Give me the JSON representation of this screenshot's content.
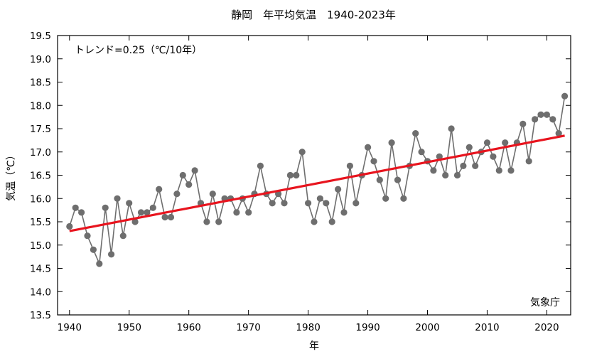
{
  "chart_data": {
    "type": "line",
    "title": "静岡　年平均気温　1940-2023年",
    "xlabel": "年",
    "ylabel": "気温（℃）",
    "trend_label": "トレンド=0.25（℃/10年）",
    "source": "気象庁",
    "xlim": [
      1938,
      2024
    ],
    "ylim": [
      13.5,
      19.5
    ],
    "xticks": [
      1940,
      1950,
      1960,
      1970,
      1980,
      1990,
      2000,
      2010,
      2020
    ],
    "yticks": [
      "13.5",
      "14.0",
      "14.5",
      "15.0",
      "15.5",
      "16.0",
      "16.5",
      "17.0",
      "17.5",
      "18.0",
      "18.5",
      "19.0",
      "19.5"
    ],
    "grid": false,
    "series": [
      {
        "x": [
          1940,
          1941,
          1942,
          1943,
          1944,
          1945,
          1946,
          1947,
          1948,
          1949,
          1950,
          1951,
          1952,
          1953,
          1954,
          1955,
          1956,
          1957,
          1958,
          1959,
          1960,
          1961,
          1962,
          1963,
          1964,
          1965,
          1966,
          1967,
          1968,
          1969,
          1970,
          1971,
          1972,
          1973,
          1974,
          1975,
          1976,
          1977,
          1978,
          1979,
          1980,
          1981,
          1982,
          1983,
          1984,
          1985,
          1986,
          1987,
          1988,
          1989,
          1990,
          1991,
          1992,
          1993,
          1994,
          1995,
          1996,
          1997,
          1998,
          1999,
          2000,
          2001,
          2002,
          2003,
          2004,
          2005,
          2006,
          2007,
          2008,
          2009,
          2010,
          2011,
          2012,
          2013,
          2014,
          2015,
          2016,
          2017,
          2018,
          2019,
          2020,
          2021,
          2022,
          2023
        ],
        "values": [
          15.4,
          15.8,
          15.7,
          15.2,
          14.9,
          14.6,
          15.8,
          14.8,
          16.0,
          15.2,
          15.9,
          15.5,
          15.7,
          15.7,
          15.8,
          16.2,
          15.6,
          15.6,
          16.1,
          16.5,
          16.3,
          16.6,
          15.9,
          15.5,
          16.1,
          15.5,
          16.0,
          16.0,
          15.7,
          16.0,
          15.7,
          16.1,
          16.7,
          16.1,
          15.9,
          16.1,
          15.9,
          16.5,
          16.5,
          17.0,
          15.9,
          15.5,
          16.0,
          15.9,
          15.5,
          16.2,
          15.7,
          16.7,
          15.9,
          16.5,
          17.1,
          16.8,
          16.4,
          16.0,
          17.2,
          16.4,
          16.0,
          16.7,
          17.4,
          17.0,
          16.8,
          16.6,
          16.9,
          16.5,
          17.5,
          16.5,
          16.7,
          17.1,
          16.7,
          17.0,
          17.2,
          16.9,
          16.6,
          17.2,
          16.6,
          17.2,
          17.6,
          16.8,
          17.7,
          17.8,
          17.8,
          17.7,
          17.4,
          18.2
        ],
        "color": "#6e6e6e"
      }
    ],
    "trend": {
      "x": [
        1940,
        2023
      ],
      "values": [
        15.3,
        17.35
      ],
      "color": "#e8141e"
    }
  }
}
